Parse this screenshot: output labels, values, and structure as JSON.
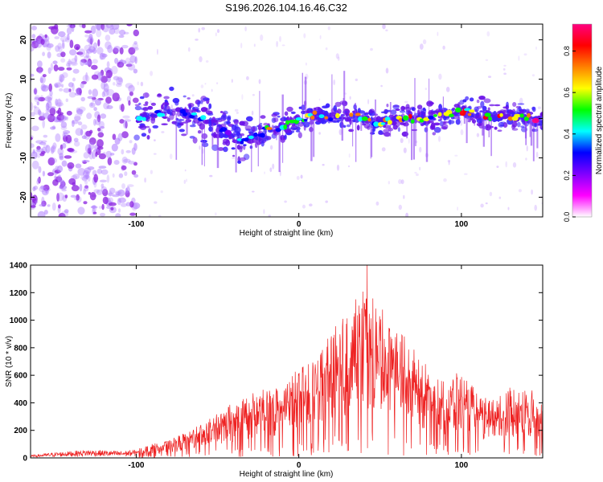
{
  "chart_data": [
    {
      "type": "heatmap",
      "title": "S196.2026.104.16.46.C32",
      "xlabel": "Height of straight line (km)",
      "ylabel": "Frequency (Hz)",
      "xlim": [
        -165,
        150
      ],
      "ylim": [
        -25,
        24
      ],
      "xticks": [
        -100,
        0,
        100
      ],
      "yticks": [
        20,
        10,
        0,
        -10,
        -20
      ],
      "colorbar": {
        "label": "Normalized spectral amplitude",
        "range": [
          0,
          0.93
        ],
        "ticks": [
          0.0,
          0.2,
          0.4,
          0.6,
          0.8
        ],
        "stops": [
          "#ffffff",
          "#ff00ff",
          "#8000ff",
          "#0000ff",
          "#00ffff",
          "#00ff00",
          "#ffff00",
          "#ff8000",
          "#ff0000",
          "#ff0080"
        ]
      },
      "ridge": {
        "x": [
          -100,
          -90,
          -80,
          -70,
          -60,
          -50,
          -40,
          -35,
          -30,
          -20,
          -10,
          0,
          10,
          20,
          30,
          40,
          50,
          60,
          70,
          80,
          90,
          100,
          110,
          120,
          130,
          140,
          150
        ],
        "y": [
          0,
          1,
          1.5,
          1,
          0,
          -2,
          -5,
          -6,
          -5,
          -3,
          -2,
          -0.5,
          1,
          0.5,
          1,
          0,
          -1,
          0,
          0,
          0,
          0.5,
          2,
          1,
          0.5,
          0.5,
          0.5,
          -1
        ]
      },
      "noise_region": [
        -165,
        -100
      ],
      "noise_fill": "#b080ff"
    },
    {
      "type": "line",
      "xlabel": "Height of straight line (km)",
      "ylabel": "SNR (10 * v/v)",
      "xlim": [
        -165,
        150
      ],
      "ylim": [
        0,
        1400
      ],
      "xticks": [
        -100,
        0,
        100
      ],
      "yticks": [
        0,
        200,
        400,
        600,
        800,
        1000,
        1200,
        1400
      ],
      "color": "#ee2222",
      "peak": {
        "x": 42,
        "y": 1400
      },
      "envelope": {
        "x": [
          -165,
          -150,
          -130,
          -110,
          -100,
          -90,
          -80,
          -70,
          -60,
          -50,
          -40,
          -30,
          -20,
          -10,
          0,
          10,
          20,
          30,
          40,
          50,
          60,
          70,
          80,
          90,
          100,
          110,
          120,
          130,
          140,
          150
        ],
        "y": [
          20,
          40,
          60,
          50,
          60,
          100,
          120,
          180,
          250,
          330,
          380,
          450,
          480,
          520,
          620,
          700,
          900,
          1000,
          1200,
          1050,
          900,
          800,
          650,
          550,
          600,
          450,
          420,
          500,
          480,
          450
        ]
      }
    }
  ]
}
